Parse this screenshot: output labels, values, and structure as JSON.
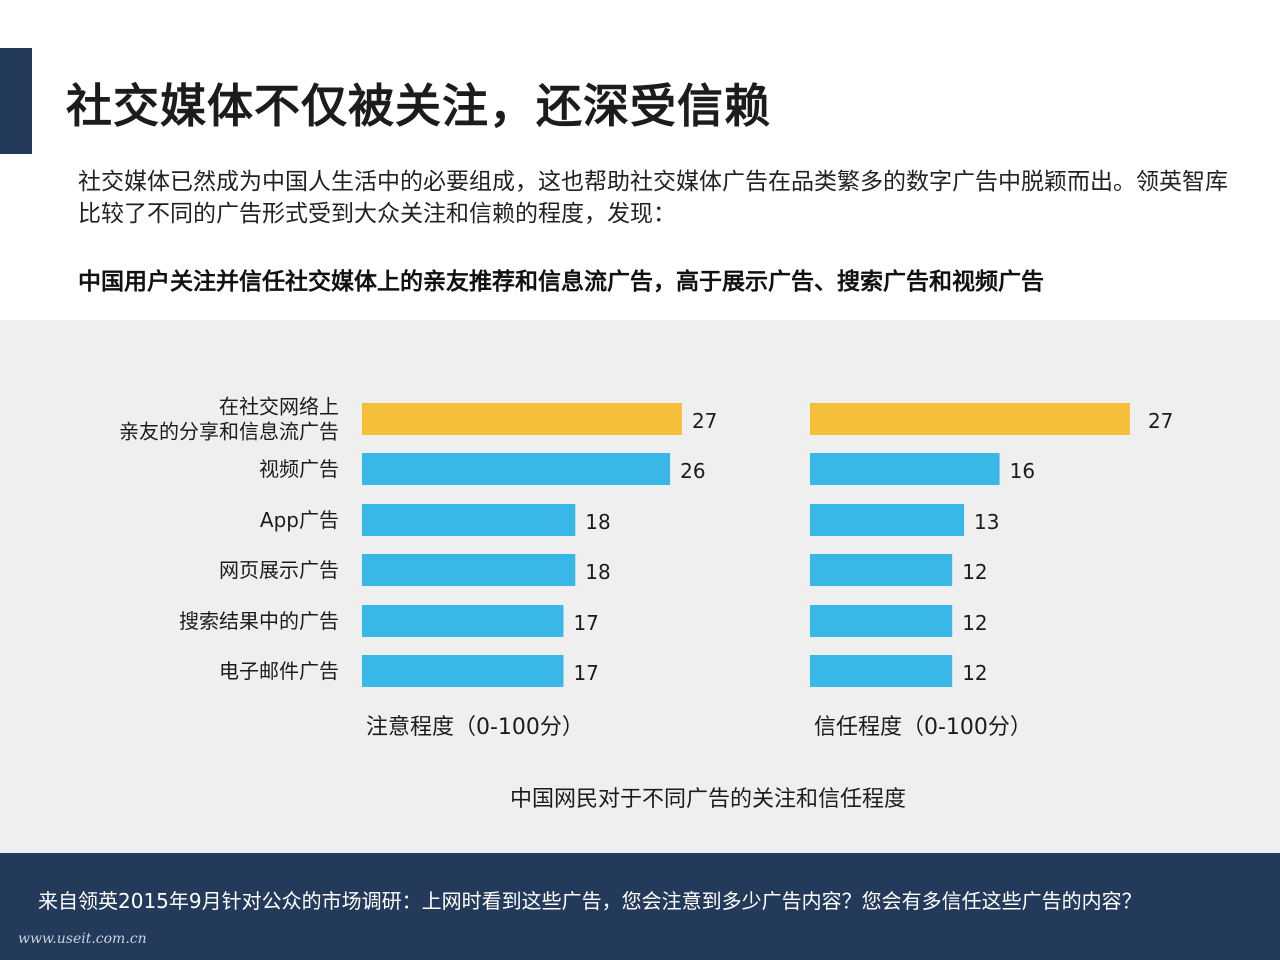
{
  "slide": {
    "title": "社交媒体不仅被关注，还深受信赖",
    "intro": "社交媒体已然成为中国人生活中的必要组成，这也帮助社交媒体广告在品类繁多的数字广告中脱颖而出。领英智库比较了不同的广告形式受到大众关注和信赖的程度，发现：",
    "headline": "中国用户关注并信任社交媒体上的亲友推荐和信息流广告，高于展示广告、搜索广告和视频广告",
    "footer": "来自领英2015年9月针对公众的市场调研：上网时看到这些广告，您会注意到多少广告内容？您会有多信任这些广告的内容？",
    "watermark": "www.useit.com.cn"
  },
  "chart_data": {
    "type": "bar",
    "orientation": "horizontal",
    "title": "中国网民对于不同广告的关注和信任程度",
    "categories": [
      [
        "在社交网络上",
        "亲友的分享和信息流广告"
      ],
      [
        "视频广告"
      ],
      [
        "App广告"
      ],
      [
        "网页展示广告"
      ],
      [
        "搜索结果中的广告"
      ],
      [
        "电子邮件广告"
      ]
    ],
    "panels": [
      {
        "xlabel": "注意程度（0-100分）",
        "values": [
          27,
          26,
          18,
          18,
          17,
          17
        ]
      },
      {
        "xlabel": "信任程度（0-100分）",
        "values": [
          27,
          16,
          13,
          12,
          12,
          12
        ]
      }
    ],
    "highlight_index": 0,
    "colors": {
      "highlight": "#f5bf3a",
      "bar": "#39b7e6"
    }
  }
}
